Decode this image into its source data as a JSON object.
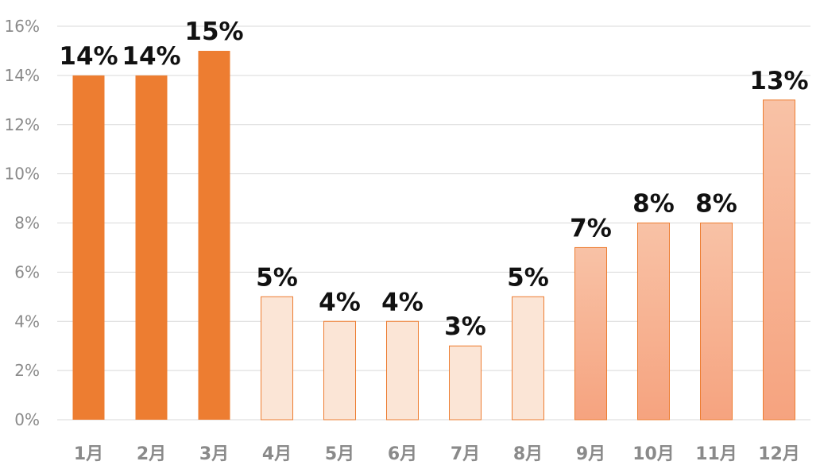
{
  "chart_data": {
    "type": "bar",
    "categories": [
      "1月",
      "2月",
      "3月",
      "4月",
      "5月",
      "6月",
      "7月",
      "8月",
      "9月",
      "10月",
      "11月",
      "12月"
    ],
    "values": [
      14,
      14,
      15,
      5,
      4,
      4,
      3,
      5,
      7,
      8,
      8,
      13
    ],
    "data_labels": [
      "14%",
      "14%",
      "15%",
      "5%",
      "4%",
      "4%",
      "3%",
      "5%",
      "7%",
      "8%",
      "8%",
      "13%"
    ],
    "bar_styles": [
      "dark",
      "dark",
      "dark",
      "light",
      "light",
      "light",
      "light",
      "light",
      "gradient",
      "gradient",
      "gradient",
      "gradient"
    ],
    "y_ticks": [
      "0%",
      "2%",
      "4%",
      "6%",
      "8%",
      "10%",
      "12%",
      "14%",
      "16%"
    ],
    "ylim": [
      0,
      16
    ],
    "y_step": 2,
    "grid": true,
    "title": "",
    "xlabel": "",
    "ylabel": "",
    "colors": {
      "dark": "#ED7D31",
      "light_fill": "#FBE5D6",
      "bar_outline": "#ED7D31",
      "gradient_top": "#F8C2A6",
      "gradient_bottom": "#F6A37F",
      "grid": "#D9D9D9",
      "tick_text": "#8A8A8A",
      "label_text": "#111111"
    }
  }
}
